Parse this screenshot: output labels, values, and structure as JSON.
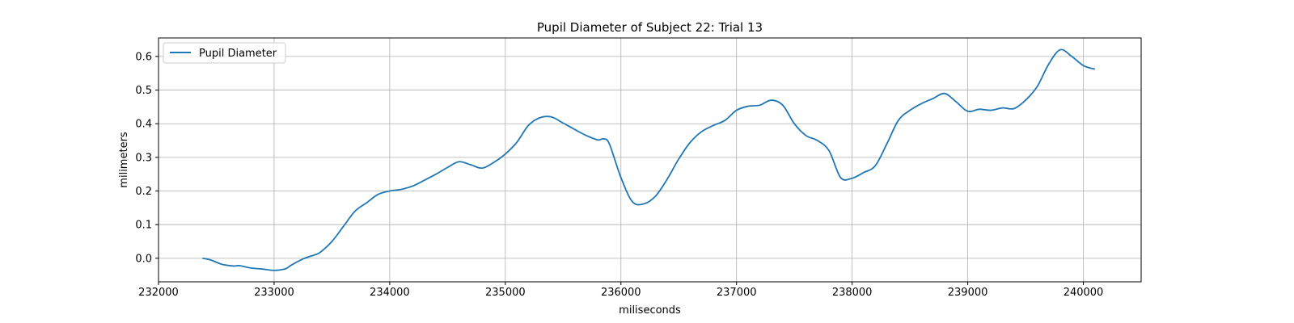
{
  "chart_data": {
    "type": "line",
    "title": "Pupil Diameter of Subject 22: Trial 13",
    "xlabel": "miliseconds",
    "ylabel": "milimeters",
    "xlim": [
      232000,
      240500
    ],
    "ylim": [
      -0.07,
      0.655
    ],
    "x_ticks": [
      232000,
      233000,
      234000,
      235000,
      236000,
      237000,
      238000,
      239000,
      240000
    ],
    "x_tick_labels": [
      "232000",
      "233000",
      "234000",
      "235000",
      "236000",
      "237000",
      "238000",
      "239000",
      "240000"
    ],
    "y_ticks": [
      0.0,
      0.1,
      0.2,
      0.3,
      0.4,
      0.5,
      0.6
    ],
    "y_tick_labels": [
      "0.0",
      "0.1",
      "0.2",
      "0.3",
      "0.4",
      "0.5",
      "0.6"
    ],
    "grid": true,
    "legend_position": "upper-left",
    "colors": {
      "series": "#1f77b4",
      "grid": "#b0b0b0",
      "axis": "#000000"
    },
    "series": [
      {
        "name": "Pupil Diameter",
        "x": [
          232380,
          232450,
          232550,
          232650,
          232700,
          232800,
          232900,
          233000,
          233100,
          233150,
          233250,
          233350,
          233400,
          233500,
          233600,
          233700,
          233800,
          233900,
          234000,
          234100,
          234200,
          234300,
          234400,
          234500,
          234600,
          234700,
          234800,
          234900,
          235000,
          235100,
          235200,
          235300,
          235400,
          235500,
          235600,
          235700,
          235800,
          235850,
          235900,
          236000,
          236100,
          236200,
          236300,
          236400,
          236500,
          236600,
          236700,
          236800,
          236900,
          237000,
          237100,
          237200,
          237300,
          237400,
          237500,
          237600,
          237700,
          237800,
          237900,
          238000,
          238100,
          238200,
          238300,
          238400,
          238500,
          238600,
          238700,
          238800,
          238900,
          239000,
          239100,
          239200,
          239300,
          239400,
          239500,
          239600,
          239700,
          239800,
          239900,
          240000,
          240100
        ],
        "y": [
          0.0,
          -0.005,
          -0.018,
          -0.023,
          -0.022,
          -0.029,
          -0.032,
          -0.036,
          -0.031,
          -0.02,
          -0.002,
          0.01,
          0.018,
          0.05,
          0.095,
          0.14,
          0.165,
          0.19,
          0.2,
          0.205,
          0.215,
          0.232,
          0.25,
          0.27,
          0.287,
          0.278,
          0.268,
          0.285,
          0.31,
          0.345,
          0.395,
          0.418,
          0.42,
          0.402,
          0.383,
          0.365,
          0.352,
          0.355,
          0.34,
          0.24,
          0.168,
          0.162,
          0.185,
          0.235,
          0.295,
          0.345,
          0.377,
          0.395,
          0.41,
          0.44,
          0.452,
          0.455,
          0.47,
          0.455,
          0.4,
          0.365,
          0.35,
          0.32,
          0.24,
          0.238,
          0.255,
          0.275,
          0.34,
          0.41,
          0.44,
          0.46,
          0.475,
          0.49,
          0.465,
          0.437,
          0.443,
          0.44,
          0.447,
          0.445,
          0.47,
          0.51,
          0.577,
          0.62,
          0.6,
          0.573,
          0.562
        ]
      }
    ]
  }
}
